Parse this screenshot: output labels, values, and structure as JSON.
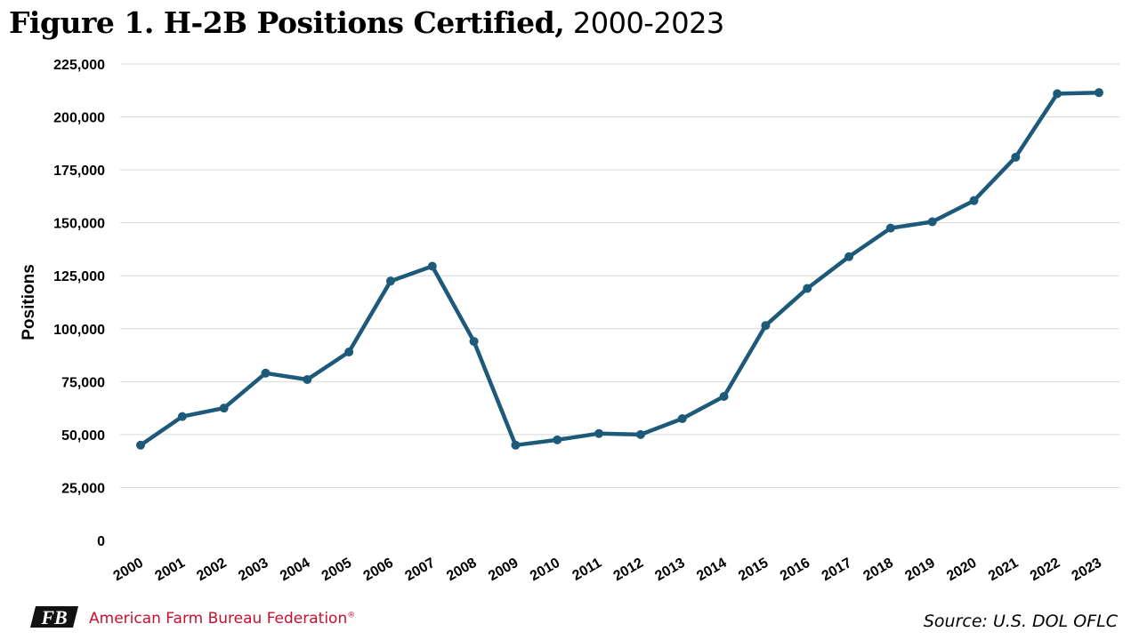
{
  "header": {
    "title_bold": "Figure 1. H-2B Positions Certified,",
    "title_light": " 2000-2023"
  },
  "footer": {
    "org_name": "American Farm Bureau Federation",
    "org_mark": "®",
    "logo_text": "FB",
    "source": "Source: U.S. DOL OFLC"
  },
  "colors": {
    "line": "#1d5a7a",
    "grid": "#d9d9d9",
    "brand": "#c8102e"
  },
  "chart_data": {
    "type": "line",
    "title": "Figure 1. H-2B Positions Certified, 2000-2023",
    "xlabel": "",
    "ylabel": "Positions",
    "ylim": [
      0,
      225000
    ],
    "yticks": [
      0,
      25000,
      50000,
      75000,
      100000,
      125000,
      150000,
      175000,
      200000,
      225000
    ],
    "ytick_labels": [
      "0",
      "25,000",
      "50,000",
      "75,000",
      "100,000",
      "125,000",
      "150,000",
      "175,000",
      "200,000",
      "225,000"
    ],
    "grid": true,
    "categories": [
      "2000",
      "2001",
      "2002",
      "2003",
      "2004",
      "2005",
      "2006",
      "2007",
      "2008",
      "2009",
      "2010",
      "2011",
      "2012",
      "2013",
      "2014",
      "2015",
      "2016",
      "2017",
      "2018",
      "2019",
      "2020",
      "2021",
      "2022",
      "2023"
    ],
    "series": [
      {
        "values": [
          45000,
          58500,
          62500,
          79000,
          76000,
          89000,
          122500,
          129500,
          94000,
          45000,
          47500,
          50500,
          50000,
          57500,
          68000,
          101500,
          119000,
          134000,
          147500,
          150500,
          160500,
          181000,
          211000,
          211500
        ]
      }
    ]
  }
}
